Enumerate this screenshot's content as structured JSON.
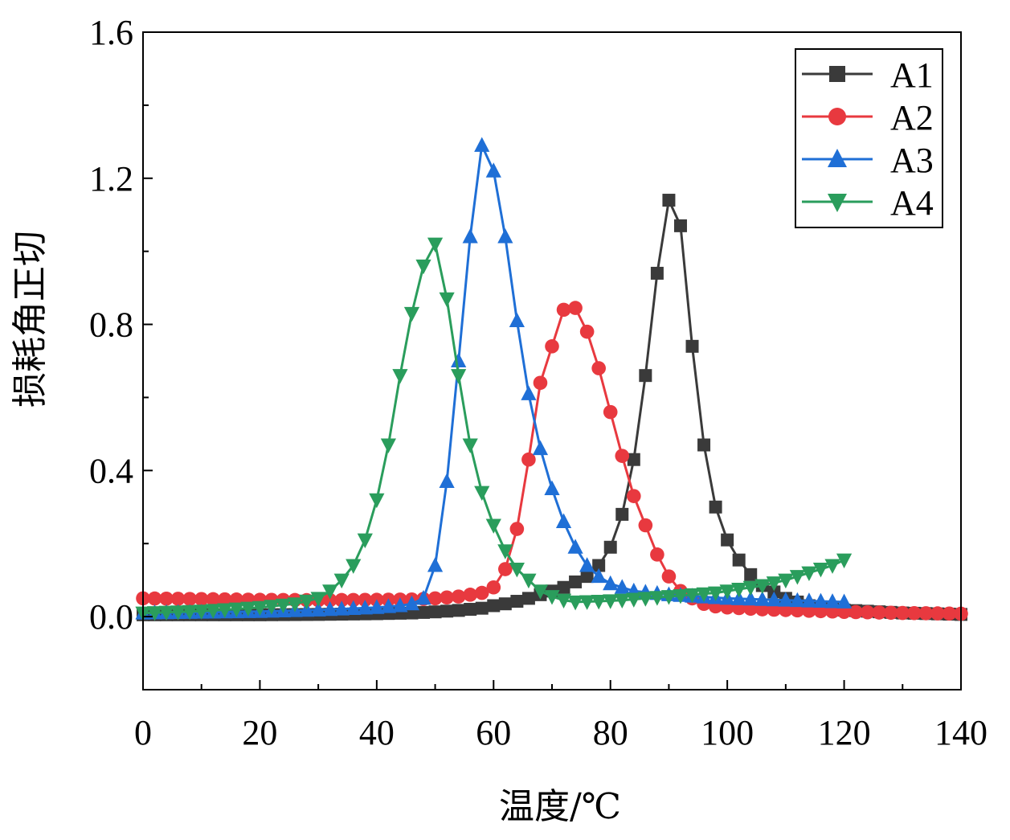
{
  "chart_data": {
    "type": "line",
    "xlabel": "温度/℃",
    "ylabel": "损耗角正切",
    "xlim": [
      0,
      140
    ],
    "ylim": [
      -0.2,
      1.6
    ],
    "xticks": [
      "0",
      "20",
      "40",
      "60",
      "80",
      "100",
      "140"
    ],
    "xticks_values": [
      0,
      20,
      40,
      60,
      80,
      100,
      140
    ],
    "yticks": [
      "0.0",
      "0.4",
      "0.8",
      "1.2",
      "1.6"
    ],
    "yticks_values": [
      0.0,
      0.4,
      0.8,
      1.2,
      1.6
    ],
    "x_extra_tick": {
      "label": "120",
      "value": 120
    },
    "grid": false,
    "legend_position": "top-right",
    "series": [
      {
        "name": "A1",
        "color": "#3a3a3a",
        "marker": "square",
        "points": [
          [
            0,
            0.005
          ],
          [
            10,
            0.005
          ],
          [
            20,
            0.005
          ],
          [
            30,
            0.006
          ],
          [
            40,
            0.008
          ],
          [
            46,
            0.01
          ],
          [
            50,
            0.013
          ],
          [
            54,
            0.017
          ],
          [
            58,
            0.023
          ],
          [
            60,
            0.03
          ],
          [
            62,
            0.035
          ],
          [
            64,
            0.042
          ],
          [
            66,
            0.05
          ],
          [
            68,
            0.06
          ],
          [
            70,
            0.07
          ],
          [
            72,
            0.08
          ],
          [
            74,
            0.095
          ],
          [
            76,
            0.11
          ],
          [
            78,
            0.14
          ],
          [
            80,
            0.19
          ],
          [
            82,
            0.28
          ],
          [
            84,
            0.43
          ],
          [
            86,
            0.66
          ],
          [
            88,
            0.94
          ],
          [
            90,
            1.14
          ],
          [
            92,
            1.07
          ],
          [
            94,
            0.74
          ],
          [
            96,
            0.47
          ],
          [
            98,
            0.3
          ],
          [
            100,
            0.21
          ],
          [
            102,
            0.155
          ],
          [
            104,
            0.115
          ],
          [
            106,
            0.085
          ],
          [
            110,
            0.05
          ],
          [
            114,
            0.03
          ],
          [
            120,
            0.018
          ],
          [
            130,
            0.01
          ],
          [
            140,
            0.006
          ]
        ]
      },
      {
        "name": "A2",
        "color": "#e8393f",
        "marker": "circle",
        "points": [
          [
            0,
            0.05
          ],
          [
            10,
            0.048
          ],
          [
            20,
            0.046
          ],
          [
            30,
            0.045
          ],
          [
            40,
            0.046
          ],
          [
            46,
            0.047
          ],
          [
            50,
            0.05
          ],
          [
            54,
            0.055
          ],
          [
            58,
            0.065
          ],
          [
            60,
            0.08
          ],
          [
            62,
            0.13
          ],
          [
            64,
            0.24
          ],
          [
            66,
            0.43
          ],
          [
            68,
            0.64
          ],
          [
            70,
            0.74
          ],
          [
            72,
            0.84
          ],
          [
            74,
            0.845
          ],
          [
            76,
            0.78
          ],
          [
            78,
            0.68
          ],
          [
            80,
            0.56
          ],
          [
            82,
            0.44
          ],
          [
            84,
            0.33
          ],
          [
            86,
            0.25
          ],
          [
            88,
            0.17
          ],
          [
            90,
            0.11
          ],
          [
            92,
            0.07
          ],
          [
            94,
            0.05
          ],
          [
            96,
            0.035
          ],
          [
            98,
            0.028
          ],
          [
            100,
            0.025
          ],
          [
            106,
            0.02
          ],
          [
            110,
            0.018
          ],
          [
            120,
            0.013
          ],
          [
            130,
            0.01
          ],
          [
            140,
            0.008
          ]
        ]
      },
      {
        "name": "A3",
        "color": "#1f6fd6",
        "marker": "triangle-up",
        "points": [
          [
            0,
            0.01
          ],
          [
            10,
            0.012
          ],
          [
            20,
            0.014
          ],
          [
            30,
            0.018
          ],
          [
            40,
            0.025
          ],
          [
            44,
            0.03
          ],
          [
            46,
            0.035
          ],
          [
            48,
            0.05
          ],
          [
            50,
            0.14
          ],
          [
            52,
            0.37
          ],
          [
            54,
            0.7
          ],
          [
            56,
            1.04
          ],
          [
            58,
            1.29
          ],
          [
            60,
            1.22
          ],
          [
            62,
            1.04
          ],
          [
            64,
            0.81
          ],
          [
            66,
            0.61
          ],
          [
            68,
            0.46
          ],
          [
            70,
            0.35
          ],
          [
            72,
            0.26
          ],
          [
            74,
            0.19
          ],
          [
            76,
            0.14
          ],
          [
            78,
            0.11
          ],
          [
            80,
            0.09
          ],
          [
            84,
            0.07
          ],
          [
            90,
            0.06
          ],
          [
            100,
            0.05
          ],
          [
            110,
            0.045
          ],
          [
            120,
            0.04
          ]
        ]
      },
      {
        "name": "A4",
        "color": "#2a9d5c",
        "marker": "triangle-down",
        "points": [
          [
            0,
            0.01
          ],
          [
            10,
            0.015
          ],
          [
            20,
            0.025
          ],
          [
            26,
            0.035
          ],
          [
            30,
            0.05
          ],
          [
            32,
            0.07
          ],
          [
            34,
            0.1
          ],
          [
            36,
            0.14
          ],
          [
            38,
            0.21
          ],
          [
            40,
            0.32
          ],
          [
            42,
            0.47
          ],
          [
            44,
            0.66
          ],
          [
            46,
            0.83
          ],
          [
            48,
            0.96
          ],
          [
            50,
            1.02
          ],
          [
            52,
            0.87
          ],
          [
            54,
            0.66
          ],
          [
            56,
            0.47
          ],
          [
            58,
            0.34
          ],
          [
            60,
            0.25
          ],
          [
            62,
            0.18
          ],
          [
            64,
            0.13
          ],
          [
            66,
            0.1
          ],
          [
            68,
            0.07
          ],
          [
            70,
            0.055
          ],
          [
            72,
            0.045
          ],
          [
            74,
            0.04
          ],
          [
            78,
            0.042
          ],
          [
            82,
            0.045
          ],
          [
            86,
            0.05
          ],
          [
            90,
            0.055
          ],
          [
            94,
            0.06
          ],
          [
            98,
            0.065
          ],
          [
            102,
            0.075
          ],
          [
            106,
            0.085
          ],
          [
            110,
            0.1
          ],
          [
            114,
            0.12
          ],
          [
            118,
            0.14
          ],
          [
            120,
            0.155
          ]
        ]
      }
    ]
  }
}
